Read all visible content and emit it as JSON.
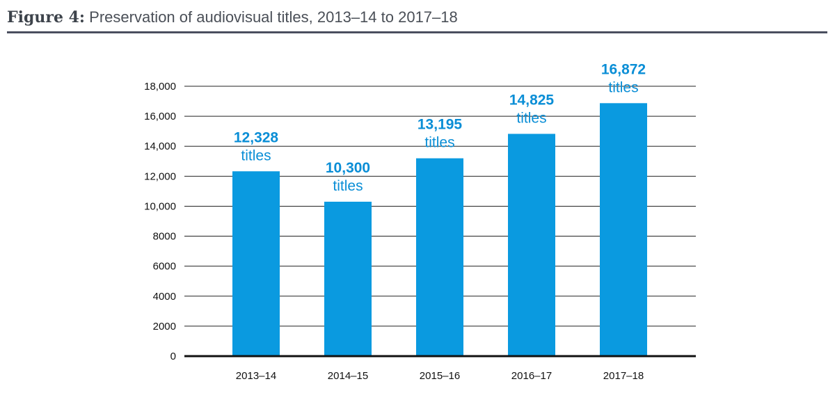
{
  "figure": {
    "label": "Figure 4:",
    "title": "Preservation of audiovisual titles, 2013–14 to 2017–18"
  },
  "colors": {
    "bar": "#0a9ae0",
    "label": "#0a8ed6",
    "grid": "#222222",
    "rule": "#4a4f5f"
  },
  "chart_data": {
    "type": "bar",
    "title": "Preservation of audiovisual titles, 2013–14 to 2017–18",
    "categories": [
      "2013–14",
      "2014–15",
      "2015–16",
      "2016–17",
      "2017–18"
    ],
    "values": [
      12328,
      10300,
      13195,
      14825,
      16872
    ],
    "value_labels": [
      "12,328",
      "10,300",
      "13,195",
      "14,825",
      "16,872"
    ],
    "unit_label": "titles",
    "ylim": [
      0,
      18000
    ],
    "yticks": [
      0,
      2000,
      4000,
      6000,
      8000,
      10000,
      12000,
      14000,
      16000,
      18000
    ],
    "ytick_labels": [
      "0",
      "2000",
      "4000",
      "6000",
      "8000",
      "10,000",
      "12,000",
      "14,000",
      "16,000",
      "18,000"
    ],
    "xlabel": "",
    "ylabel": "",
    "grid": true
  }
}
